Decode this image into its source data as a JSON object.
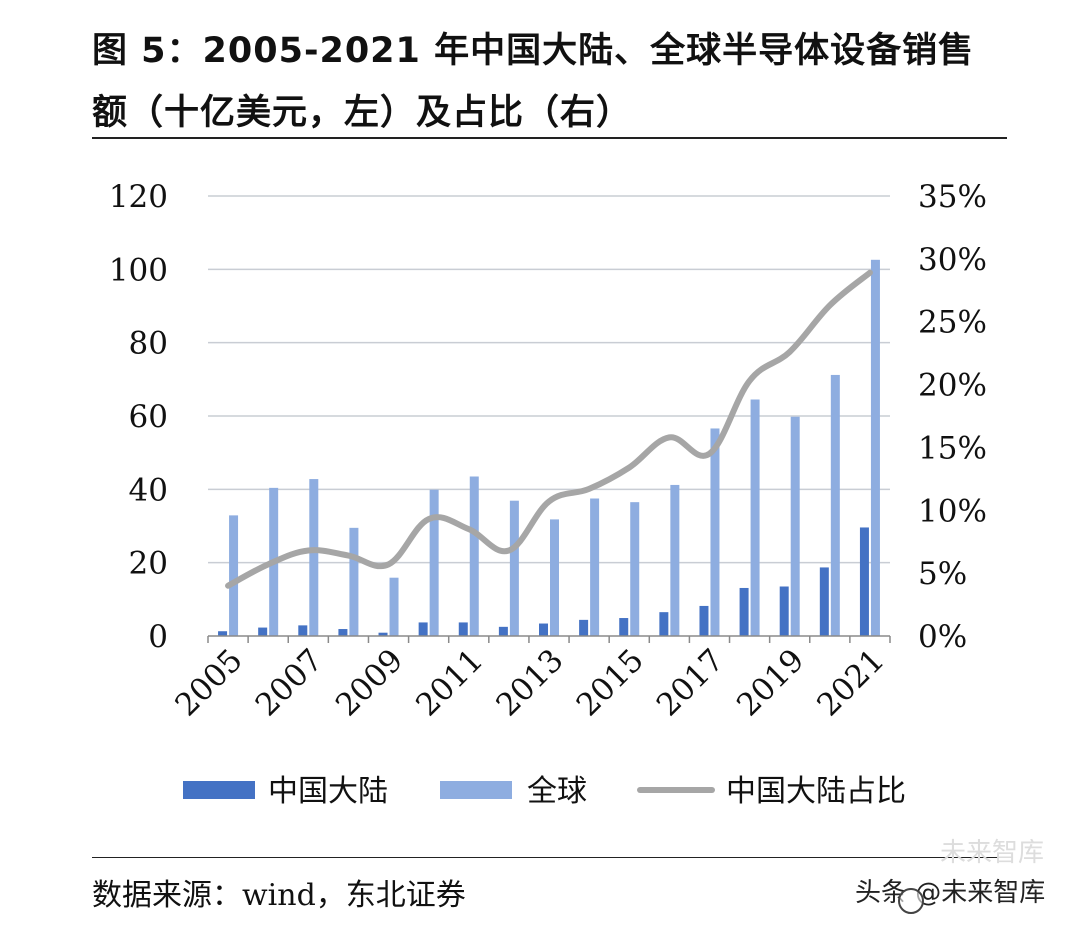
{
  "header": {
    "title_line1": "图 5：2005-2021 年中国大陆、全球半导体设备销售",
    "title_line2": "额（十亿美元，左）及占比（右）"
  },
  "footer": {
    "source": "数据来源：wind，东北证券",
    "watermark": "头条 @未来智库",
    "watermark_faint": "未来智库"
  },
  "chart_data": {
    "type": "bar",
    "title": "2005-2021 年中国大陆、全球半导体设备销售额（十亿美元，左）及占比（右）",
    "categories": [
      "2005",
      "2006",
      "2007",
      "2008",
      "2009",
      "2010",
      "2011",
      "2012",
      "2013",
      "2014",
      "2015",
      "2016",
      "2017",
      "2018",
      "2019",
      "2020",
      "2021"
    ],
    "x_tick_labels": [
      "2005",
      "2007",
      "2009",
      "2011",
      "2013",
      "2015",
      "2017",
      "2019",
      "2021"
    ],
    "y_left": {
      "min": 0,
      "max": 120,
      "ticks": [
        "0",
        "20",
        "40",
        "60",
        "80",
        "100",
        "120"
      ]
    },
    "y_right": {
      "min": 0,
      "max": 0.35,
      "ticks": [
        "0%",
        "5%",
        "10%",
        "15%",
        "20%",
        "25%",
        "30%",
        "35%"
      ]
    },
    "grid": true,
    "legend_position": "bottom",
    "series": [
      {
        "name": "中国大陆",
        "kind": "bar",
        "axis": "left",
        "color": "#4472C4",
        "values": [
          1.3,
          2.3,
          2.9,
          1.9,
          0.9,
          3.7,
          3.7,
          2.5,
          3.4,
          4.4,
          4.9,
          6.5,
          8.2,
          13.1,
          13.5,
          18.7,
          29.6
        ]
      },
      {
        "name": "全球",
        "kind": "bar",
        "axis": "left",
        "color": "#8EADE0",
        "values": [
          32.9,
          40.4,
          42.8,
          29.5,
          15.9,
          39.9,
          43.5,
          36.9,
          31.8,
          37.5,
          36.5,
          41.2,
          56.6,
          64.5,
          59.8,
          71.2,
          102.6
        ]
      },
      {
        "name": "中国大陆占比",
        "kind": "line",
        "axis": "right",
        "color": "#A6A6A6",
        "values": [
          0.04,
          0.057,
          0.068,
          0.064,
          0.057,
          0.093,
          0.085,
          0.068,
          0.107,
          0.117,
          0.134,
          0.158,
          0.145,
          0.203,
          0.226,
          0.263,
          0.289
        ]
      }
    ]
  }
}
